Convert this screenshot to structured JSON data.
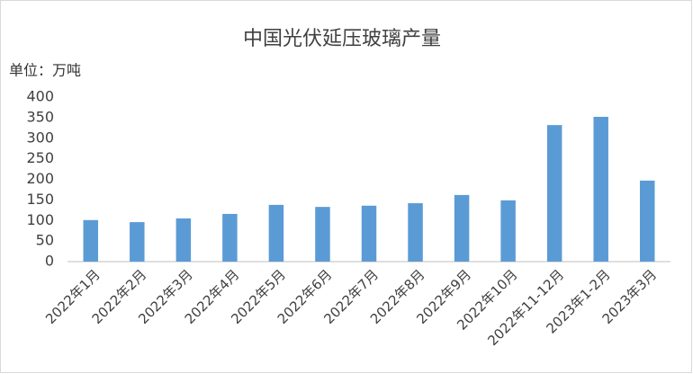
{
  "chart_data": {
    "type": "bar",
    "title": "中国光伏延压玻璃产量",
    "y_axis_label": "单位：万吨",
    "categories": [
      "2022年1月",
      "2022年2月",
      "2022年3月",
      "2022年4月",
      "2022年5月",
      "2022年6月",
      "2022年7月",
      "2022年8月",
      "2022年9月",
      "2022年10月",
      "2022年11-12月",
      "2023年1-2月",
      "2023年3月"
    ],
    "values": [
      101,
      96,
      105,
      116,
      138,
      133,
      136,
      142,
      162,
      149,
      332,
      352,
      197
    ],
    "color": "#5b9bd5",
    "ylim": [
      0,
      400
    ],
    "yticks": [
      0,
      50,
      100,
      150,
      200,
      250,
      300,
      350,
      400
    ],
    "grid": false
  }
}
